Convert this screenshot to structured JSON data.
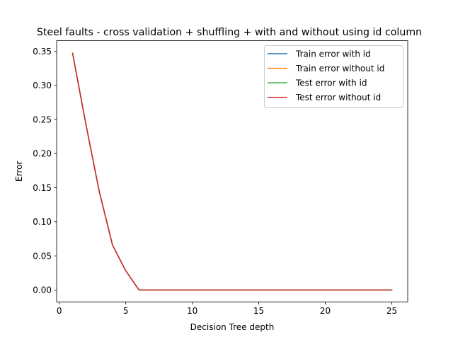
{
  "chart_data": {
    "type": "line",
    "title": "Steel faults - cross validation + shuffling + with and without using id column",
    "xlabel": "Decision Tree depth",
    "ylabel": "Error",
    "xlim": [
      -0.2,
      26.2
    ],
    "ylim": [
      -0.0174,
      0.3654
    ],
    "xticks": [
      0,
      5,
      10,
      15,
      20,
      25
    ],
    "xtick_labels": [
      "0",
      "5",
      "10",
      "15",
      "20",
      "25"
    ],
    "yticks": [
      0.0,
      0.05,
      0.1,
      0.15,
      0.2,
      0.25,
      0.3,
      0.35
    ],
    "ytick_labels": [
      "0.00",
      "0.05",
      "0.10",
      "0.15",
      "0.20",
      "0.25",
      "0.30",
      "0.35"
    ],
    "grid": false,
    "legend_position": "top-right",
    "x": [
      1,
      2,
      3,
      4,
      5,
      6,
      7,
      8,
      9,
      10,
      11,
      12,
      13,
      14,
      15,
      16,
      17,
      18,
      19,
      20,
      21,
      22,
      23,
      24,
      25
    ],
    "series": [
      {
        "name": "Train error with id",
        "color": "#1f77b4",
        "values": [
          0.347,
          0.243,
          0.145,
          0.066,
          0.028,
          0.0,
          0.0,
          0.0,
          0.0,
          0.0,
          0.0,
          0.0,
          0.0,
          0.0,
          0.0,
          0.0,
          0.0,
          0.0,
          0.0,
          0.0,
          0.0,
          0.0,
          0.0,
          0.0,
          0.0
        ]
      },
      {
        "name": "Train error without id",
        "color": "#ff7f0e",
        "values": [
          0.347,
          0.243,
          0.145,
          0.066,
          0.028,
          0.0,
          0.0,
          0.0,
          0.0,
          0.0,
          0.0,
          0.0,
          0.0,
          0.0,
          0.0,
          0.0,
          0.0,
          0.0,
          0.0,
          0.0,
          0.0,
          0.0,
          0.0,
          0.0,
          0.0
        ]
      },
      {
        "name": "Test error with id",
        "color": "#2ca02c",
        "values": [
          0.347,
          0.243,
          0.145,
          0.066,
          0.028,
          0.0,
          0.0,
          0.0,
          0.0,
          0.0,
          0.0,
          0.0,
          0.0,
          0.0,
          0.0,
          0.0,
          0.0,
          0.0,
          0.0,
          0.0,
          0.0,
          0.0,
          0.0,
          0.0,
          0.0
        ]
      },
      {
        "name": "Test error without id",
        "color": "#d62728",
        "values": [
          0.347,
          0.243,
          0.145,
          0.066,
          0.028,
          0.0,
          0.0,
          0.0,
          0.0,
          0.0,
          0.0,
          0.0,
          0.0,
          0.0,
          0.0,
          0.0,
          0.0,
          0.0,
          0.0,
          0.0,
          0.0,
          0.0,
          0.0,
          0.0,
          0.0
        ]
      }
    ]
  }
}
